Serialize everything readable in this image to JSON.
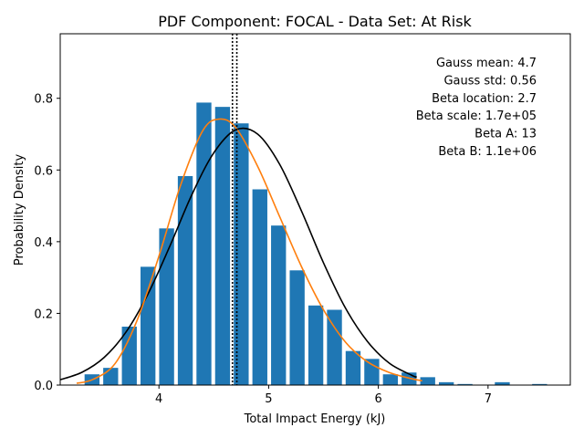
{
  "chart_data": {
    "type": "bar",
    "title": "PDF Component: FOCAL - Data Set: At Risk",
    "xlabel": "Total Impact Energy (kJ)",
    "ylabel": "Probability Density",
    "xlim": [
      3.1,
      7.75
    ],
    "ylim": [
      0,
      0.98
    ],
    "xticks": [
      4,
      5,
      6,
      7
    ],
    "yticks": [
      0.0,
      0.2,
      0.4,
      0.6,
      0.8
    ],
    "ytick_labels": [
      "0.0",
      "0.2",
      "0.4",
      "0.6",
      "0.8"
    ],
    "bar_width": 0.136,
    "bars": {
      "x": [
        3.39,
        3.56,
        3.73,
        3.9,
        4.07,
        4.24,
        4.41,
        4.58,
        4.75,
        4.92,
        5.09,
        5.26,
        5.43,
        5.6,
        5.77,
        5.94,
        6.11,
        6.28,
        6.45,
        6.62,
        6.79,
        6.96,
        7.13,
        7.3,
        7.47
      ],
      "values": [
        0.03,
        0.048,
        0.163,
        0.33,
        0.437,
        0.583,
        0.788,
        0.776,
        0.73,
        0.546,
        0.445,
        0.32,
        0.222,
        0.21,
        0.095,
        0.073,
        0.03,
        0.035,
        0.022,
        0.008,
        0.003,
        0.0,
        0.008,
        0.0,
        0.003
      ]
    },
    "series": [
      {
        "name": "",
        "color": "#000000",
        "x": [
          3.1,
          3.3,
          3.5,
          3.7,
          3.9,
          4.1,
          4.3,
          4.5,
          4.7,
          4.9,
          5.1,
          5.3,
          5.5,
          5.7,
          5.9,
          6.1,
          6.3,
          6.35
        ],
        "y": [
          0.015,
          0.036,
          0.077,
          0.148,
          0.254,
          0.388,
          0.531,
          0.648,
          0.712,
          0.7,
          0.616,
          0.485,
          0.341,
          0.215,
          0.122,
          0.061,
          0.028,
          0.022
        ]
      },
      {
        "name": "",
        "color": "#ff7f0e",
        "x": [
          3.25,
          3.4,
          3.6,
          3.8,
          4.0,
          4.2,
          4.4,
          4.55,
          4.7,
          4.9,
          5.1,
          5.3,
          5.5,
          5.7,
          5.9,
          6.1,
          6.3,
          6.4
        ],
        "y": [
          0.005,
          0.016,
          0.06,
          0.18,
          0.36,
          0.56,
          0.71,
          0.742,
          0.718,
          0.61,
          0.47,
          0.33,
          0.21,
          0.12,
          0.065,
          0.035,
          0.018,
          0.012
        ]
      }
    ],
    "vlines": [
      4.67,
      4.71
    ],
    "annotations": [
      "Gauss mean: 4.7",
      "Gauss std: 0.56",
      "Beta location: 2.7",
      "Beta scale: 1.7e+05",
      "Beta A: 13",
      "Beta B: 1.1e+06"
    ],
    "bar_color": "#1f77b4",
    "grid": false
  }
}
